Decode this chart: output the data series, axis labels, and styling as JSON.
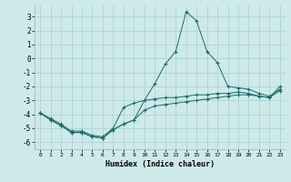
{
  "xlabel": "Humidex (Indice chaleur)",
  "xlim": [
    -0.5,
    23.5
  ],
  "ylim": [
    -6.5,
    3.8
  ],
  "xticks": [
    0,
    1,
    2,
    3,
    4,
    5,
    6,
    7,
    8,
    9,
    10,
    11,
    12,
    13,
    14,
    15,
    16,
    17,
    18,
    19,
    20,
    21,
    22,
    23
  ],
  "yticks": [
    -6,
    -5,
    -4,
    -3,
    -2,
    -1,
    0,
    1,
    2,
    3
  ],
  "background_color": "#cee9e9",
  "grid_color": "#aacece",
  "line_color": "#1a6b6b",
  "line1_x": [
    0,
    1,
    2,
    3,
    4,
    5,
    6,
    7,
    8,
    9,
    10,
    11,
    12,
    13,
    14,
    15,
    16,
    17,
    18,
    19,
    20,
    21,
    22,
    23
  ],
  "line1_y": [
    -3.9,
    -4.4,
    -4.8,
    -5.3,
    -5.3,
    -5.6,
    -5.7,
    -5.1,
    -4.7,
    -4.4,
    -3.7,
    -3.4,
    -3.3,
    -3.2,
    -3.1,
    -3.0,
    -2.9,
    -2.8,
    -2.7,
    -2.6,
    -2.6,
    -2.7,
    -2.8,
    -2.3
  ],
  "line2_x": [
    0,
    1,
    2,
    3,
    4,
    5,
    6,
    7,
    8,
    9,
    10,
    11,
    12,
    13,
    14,
    15,
    16,
    17,
    18,
    19,
    20,
    21,
    22,
    23
  ],
  "line2_y": [
    -3.9,
    -4.4,
    -4.8,
    -5.3,
    -5.3,
    -5.6,
    -5.7,
    -5.1,
    -4.7,
    -4.4,
    -3.0,
    -1.8,
    -0.4,
    0.5,
    3.35,
    2.7,
    0.5,
    -0.3,
    -2.0,
    -2.1,
    -2.2,
    -2.5,
    -2.7,
    -2.2
  ],
  "line3_x": [
    0,
    1,
    2,
    3,
    4,
    5,
    6,
    7,
    8,
    9,
    10,
    11,
    12,
    13,
    14,
    15,
    16,
    17,
    18,
    19,
    20,
    21,
    22,
    23
  ],
  "line3_y": [
    -3.9,
    -4.3,
    -4.7,
    -5.2,
    -5.2,
    -5.5,
    -5.6,
    -5.0,
    -3.5,
    -3.2,
    -3.0,
    -2.9,
    -2.8,
    -2.8,
    -2.7,
    -2.6,
    -2.6,
    -2.5,
    -2.5,
    -2.4,
    -2.5,
    -2.7,
    -2.8,
    -2.0
  ]
}
